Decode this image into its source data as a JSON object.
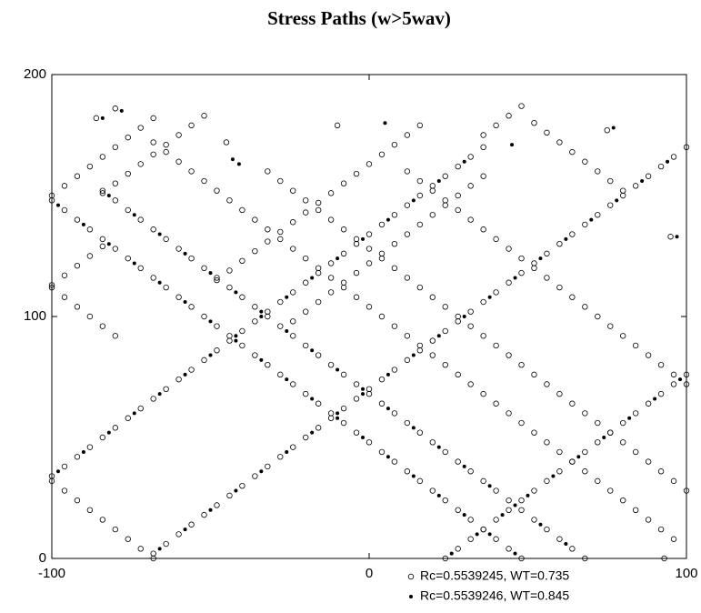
{
  "chart_data": {
    "type": "scatter",
    "title": "Stress Paths (w>5wav)",
    "xlim": [
      -100,
      100
    ],
    "ylim": [
      0,
      200
    ],
    "xticks": [
      -100,
      0,
      100
    ],
    "yticks": [
      0,
      100,
      200
    ],
    "series": [
      {
        "name": "Rc=0.5539245, WT=0.735",
        "color": "#000000",
        "marker": "hollow-circle",
        "x": [
          -100,
          -96,
          -92,
          -88,
          -84,
          -80,
          -76,
          -72,
          -68,
          -64,
          -60,
          -56,
          -52,
          -48,
          -44,
          -40,
          -36,
          -32,
          -28,
          -24,
          -20,
          -16,
          -12,
          -8,
          -4,
          0,
          4,
          8,
          12,
          16,
          20,
          24,
          28,
          32,
          36,
          -68,
          -64,
          -60,
          -56,
          -52,
          -48,
          -44,
          -40,
          -36,
          -32,
          -28,
          -24,
          -20,
          -16,
          -12,
          -8,
          -4,
          0,
          4,
          8,
          12,
          16,
          20,
          24,
          28,
          32,
          36,
          40,
          44,
          48,
          52,
          56,
          60,
          64,
          68,
          72,
          76,
          80,
          84,
          88,
          92,
          96,
          100,
          24,
          28,
          32,
          36,
          40,
          44,
          48,
          52,
          56,
          60,
          64,
          68,
          72,
          76,
          80,
          84,
          88,
          92,
          96,
          100,
          -100,
          -96,
          -92,
          -88,
          -84,
          -80,
          -76,
          -72,
          -68,
          -100,
          -96,
          -92,
          -88,
          -84,
          -84,
          -80,
          -76,
          -72,
          -68,
          -64,
          -60,
          -56,
          -52,
          -48,
          -44,
          -40,
          -36,
          -32,
          -28,
          -24,
          -20,
          -16,
          -12,
          -8,
          -4,
          0,
          4,
          8,
          12,
          16,
          -24,
          -20,
          -16,
          -12,
          -8,
          -4,
          0,
          4,
          8,
          12,
          16,
          20,
          24,
          28,
          32,
          36,
          36,
          40,
          44,
          48,
          -100,
          -96,
          -92,
          -88,
          -84,
          -80,
          -76,
          -72,
          -68,
          -100,
          -96,
          -92,
          -88,
          -84,
          -80,
          -76,
          -72,
          -68,
          -64,
          -60,
          -56,
          -52,
          -48,
          -44,
          -40,
          -36,
          -32,
          -28,
          -24,
          -20,
          -16,
          -12,
          -8,
          -4,
          0,
          4,
          8,
          12,
          16,
          20,
          24,
          28,
          32,
          36,
          40,
          44,
          48,
          -84,
          -80,
          -76,
          -72,
          -68,
          -64,
          -60,
          -56,
          -52,
          -48,
          -44,
          -40,
          -36,
          -32,
          -28,
          -24,
          -20,
          -16,
          -12,
          -8,
          -4,
          0,
          4,
          8,
          12,
          16,
          20,
          24,
          28,
          32,
          36,
          40,
          44,
          48,
          52,
          56,
          60,
          64,
          68,
          -100,
          -96,
          -92,
          -88,
          -84,
          -80,
          -68,
          -64,
          -60,
          -56,
          -52,
          -48,
          -44,
          -40,
          -36,
          -32,
          -28,
          -24,
          -20,
          -16,
          -12,
          -8,
          -4,
          0,
          4,
          8,
          12,
          16,
          20,
          24,
          28,
          32,
          36,
          40,
          44,
          48,
          52,
          56,
          60,
          64,
          68,
          72,
          76,
          80,
          84,
          88,
          92,
          96,
          -32,
          -28,
          -24,
          -20,
          -16,
          -12,
          -8,
          -4,
          0,
          4,
          8,
          12,
          16,
          20,
          24,
          28,
          32,
          36,
          40,
          44,
          48,
          52,
          56,
          60,
          64,
          68,
          72,
          76,
          80,
          84,
          88,
          92,
          96,
          100,
          12,
          16,
          20,
          24,
          28,
          32,
          36,
          40,
          44,
          48,
          52,
          56,
          60,
          64,
          68,
          72,
          76,
          80,
          84,
          88,
          92,
          96,
          100,
          52,
          56,
          60,
          64,
          68,
          72,
          76,
          80,
          -86,
          -80,
          -10,
          75,
          95,
          93,
          -45
        ],
        "y": [
          34,
          38,
          42,
          46,
          50,
          54,
          58,
          62,
          66,
          70,
          74,
          78,
          82,
          86,
          90,
          94,
          98,
          102,
          106,
          110,
          114,
          118,
          122,
          126,
          130,
          134,
          138,
          142,
          146,
          150,
          154,
          158,
          162,
          166,
          170,
          2,
          6,
          10,
          14,
          18,
          22,
          26,
          30,
          34,
          38,
          42,
          46,
          50,
          54,
          58,
          62,
          66,
          70,
          74,
          78,
          82,
          86,
          90,
          94,
          98,
          102,
          106,
          110,
          114,
          118,
          122,
          126,
          130,
          134,
          138,
          142,
          146,
          150,
          154,
          158,
          162,
          166,
          170,
          0,
          4,
          8,
          12,
          16,
          20,
          24,
          28,
          32,
          36,
          40,
          44,
          48,
          52,
          56,
          60,
          64,
          68,
          72,
          76,
          150,
          154,
          158,
          162,
          166,
          170,
          174,
          178,
          182,
          113,
          117,
          121,
          125,
          129,
          151,
          155,
          159,
          163,
          167,
          171,
          175,
          179,
          183,
          115,
          119,
          123,
          127,
          131,
          135,
          139,
          143,
          147,
          151,
          155,
          159,
          163,
          167,
          171,
          175,
          179,
          98,
          102,
          106,
          110,
          114,
          118,
          122,
          126,
          130,
          134,
          138,
          142,
          146,
          150,
          154,
          158,
          175,
          179,
          183,
          187,
          32,
          28,
          24,
          20,
          16,
          12,
          8,
          4,
          0,
          148,
          144,
          140,
          136,
          132,
          128,
          124,
          120,
          116,
          112,
          108,
          104,
          100,
          96,
          92,
          88,
          84,
          80,
          76,
          72,
          68,
          64,
          60,
          56,
          52,
          48,
          44,
          40,
          36,
          32,
          28,
          24,
          20,
          16,
          12,
          8,
          4,
          0,
          152,
          148,
          144,
          140,
          136,
          132,
          128,
          124,
          120,
          116,
          112,
          108,
          104,
          100,
          96,
          92,
          88,
          84,
          80,
          76,
          72,
          68,
          64,
          60,
          56,
          52,
          48,
          44,
          40,
          36,
          32,
          28,
          24,
          20,
          16,
          12,
          8,
          4,
          0,
          112,
          108,
          104,
          100,
          96,
          92,
          172,
          168,
          164,
          160,
          156,
          152,
          148,
          144,
          140,
          136,
          132,
          128,
          124,
          120,
          116,
          112,
          108,
          104,
          100,
          96,
          92,
          88,
          84,
          80,
          76,
          72,
          68,
          64,
          60,
          56,
          52,
          48,
          44,
          40,
          36,
          32,
          28,
          24,
          20,
          16,
          12,
          8,
          160,
          156,
          152,
          148,
          144,
          140,
          136,
          132,
          128,
          124,
          120,
          116,
          112,
          108,
          104,
          100,
          96,
          92,
          88,
          84,
          80,
          76,
          72,
          68,
          64,
          60,
          56,
          52,
          48,
          44,
          40,
          36,
          32,
          28,
          160,
          156,
          152,
          148,
          144,
          140,
          136,
          132,
          128,
          124,
          120,
          116,
          112,
          108,
          104,
          100,
          96,
          92,
          88,
          84,
          80,
          76,
          72,
          180,
          176,
          172,
          168,
          164,
          160,
          156,
          152,
          182,
          186,
          179,
          177,
          133,
          0,
          172
        ]
      },
      {
        "name": "Rc=0.5539246, WT=0.845",
        "color": "#000000",
        "marker": "filled-dot",
        "x": [
          -98,
          -90,
          -82,
          -74,
          -66,
          -58,
          -50,
          -42,
          -34,
          -26,
          -18,
          -10,
          -2,
          6,
          14,
          22,
          30,
          -66,
          -58,
          -50,
          -42,
          -34,
          -26,
          -18,
          -10,
          -2,
          6,
          14,
          22,
          30,
          38,
          46,
          54,
          62,
          70,
          78,
          86,
          94,
          26,
          34,
          42,
          50,
          58,
          66,
          74,
          82,
          90,
          98,
          -98,
          -90,
          -82,
          -74,
          -66,
          -58,
          -50,
          -42,
          -34,
          -26,
          -18,
          -10,
          -2,
          6,
          14,
          22,
          30,
          38,
          46,
          -82,
          -74,
          -66,
          -58,
          -50,
          -42,
          -34,
          -26,
          -18,
          -10,
          -2,
          6,
          14,
          22,
          30,
          38,
          46,
          54,
          62,
          -84,
          -78,
          5,
          45,
          77,
          97,
          -43,
          -41
        ],
        "y": [
          36,
          44,
          52,
          60,
          68,
          76,
          84,
          92,
          100,
          108,
          116,
          124,
          132,
          140,
          148,
          156,
          164,
          4,
          12,
          20,
          28,
          36,
          44,
          52,
          60,
          68,
          76,
          84,
          92,
          100,
          108,
          116,
          124,
          132,
          140,
          148,
          156,
          164,
          2,
          10,
          18,
          26,
          34,
          42,
          50,
          58,
          66,
          74,
          146,
          138,
          130,
          122,
          114,
          106,
          98,
          90,
          82,
          74,
          66,
          58,
          50,
          42,
          34,
          26,
          18,
          10,
          2,
          150,
          142,
          134,
          126,
          118,
          110,
          102,
          94,
          86,
          78,
          70,
          62,
          54,
          46,
          38,
          30,
          22,
          14,
          6,
          182,
          185,
          180,
          171,
          178,
          133,
          165,
          163
        ]
      }
    ]
  }
}
